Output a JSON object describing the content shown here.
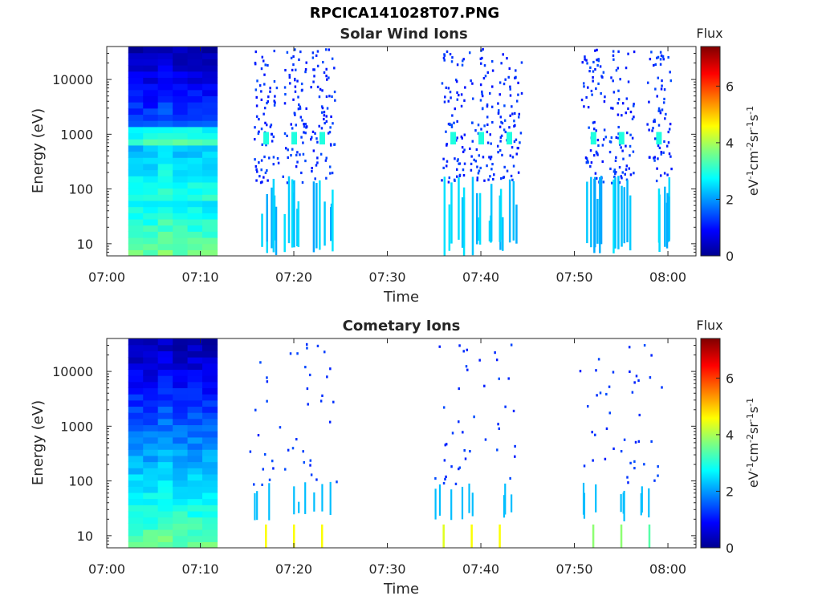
{
  "figure_title": "RPCICA141028T07.PNG",
  "chart_data": [
    {
      "type": "heatmap",
      "title": "Solar Wind Ions",
      "xlabel": "Time",
      "ylabel": "Energy (eV)",
      "x_ticks": [
        "07:00",
        "07:10",
        "07:20",
        "07:30",
        "07:40",
        "07:50",
        "08:00"
      ],
      "y_ticks": [
        "10",
        "100",
        "1000",
        "10000"
      ],
      "y_scale": "log",
      "xlim": [
        "07:00",
        "08:03"
      ],
      "ylim": [
        6,
        40000
      ],
      "colorbar": {
        "label": "Flux",
        "unit": "eV-1cm-2sr-1s-1",
        "ticks": [
          "0",
          "2",
          "4",
          "6"
        ],
        "range": [
          0,
          7.4
        ]
      },
      "dense_block": {
        "start": "07:02.3",
        "end": "07:11.8",
        "e_min": 6,
        "e_max": 40000
      },
      "bursts": [
        {
          "time": "07:17",
          "peak_energy": 850,
          "peak_flux": 3.0
        },
        {
          "time": "07:20",
          "peak_energy": 850,
          "peak_flux": 3.0
        },
        {
          "time": "07:23",
          "peak_energy": 850,
          "peak_flux": 3.0
        },
        {
          "time": "07:37",
          "peak_energy": 850,
          "peak_flux": 3.0
        },
        {
          "time": "07:40",
          "peak_energy": 850,
          "peak_flux": 3.0
        },
        {
          "time": "07:43",
          "peak_energy": 850,
          "peak_flux": 3.0
        },
        {
          "time": "07:52",
          "peak_energy": 850,
          "peak_flux": 3.0
        },
        {
          "time": "07:55",
          "peak_energy": 850,
          "peak_flux": 3.0
        },
        {
          "time": "07:59",
          "peak_energy": 850,
          "peak_flux": 3.0
        }
      ]
    },
    {
      "type": "heatmap",
      "title": "Cometary Ions",
      "xlabel": "Time",
      "ylabel": "Energy (eV)",
      "x_ticks": [
        "07:00",
        "07:10",
        "07:20",
        "07:30",
        "07:40",
        "07:50",
        "08:00"
      ],
      "y_ticks": [
        "10",
        "100",
        "1000",
        "10000"
      ],
      "y_scale": "log",
      "xlim": [
        "07:00",
        "08:03"
      ],
      "ylim": [
        6,
        40000
      ],
      "colorbar": {
        "label": "Flux",
        "unit": "eV-1cm-2sr-1s-1",
        "ticks": [
          "0",
          "2",
          "4",
          "6"
        ],
        "range": [
          0,
          7.4
        ]
      },
      "dense_block": {
        "start": "07:02.3",
        "end": "07:11.8",
        "e_min": 6,
        "e_max": 40000
      },
      "bursts": [
        {
          "time": "07:17",
          "peak_energy": 10,
          "peak_flux": 4.6
        },
        {
          "time": "07:20",
          "peak_energy": 10,
          "peak_flux": 4.6
        },
        {
          "time": "07:23",
          "peak_energy": 10,
          "peak_flux": 4.6
        },
        {
          "time": "07:36",
          "peak_energy": 10,
          "peak_flux": 4.4
        },
        {
          "time": "07:39",
          "peak_energy": 10,
          "peak_flux": 4.6
        },
        {
          "time": "07:42",
          "peak_energy": 10,
          "peak_flux": 4.6
        },
        {
          "time": "07:52",
          "peak_energy": 10,
          "peak_flux": 3.8
        },
        {
          "time": "07:55",
          "peak_energy": 10,
          "peak_flux": 3.8
        },
        {
          "time": "07:58",
          "peak_energy": 10,
          "peak_flux": 3.4
        }
      ]
    }
  ]
}
